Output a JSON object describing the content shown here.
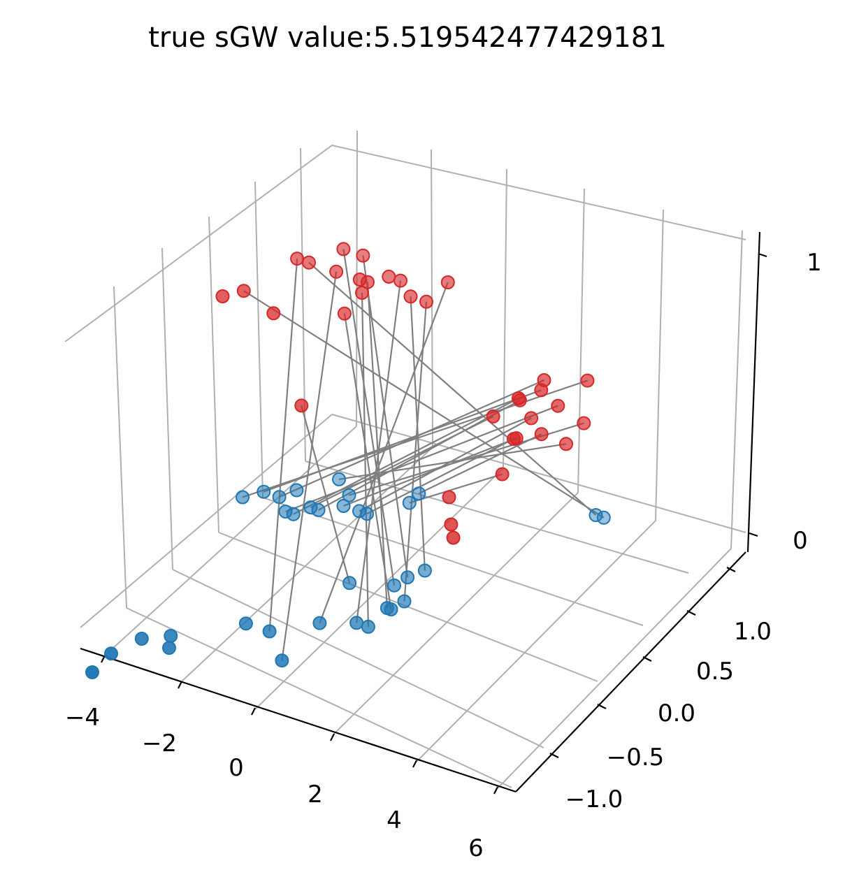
{
  "chart_data": {
    "type": "scatter",
    "title": "true sGW value:5.519542477429181",
    "axes": {
      "x": {
        "ticks": [
          "−4",
          "−2",
          "0",
          "2",
          "4",
          "6"
        ]
      },
      "y": {
        "ticks": [
          "−1.0",
          "−0.5",
          "0.0",
          "0.5",
          "1.0"
        ]
      },
      "z": {
        "ticks": [
          "0",
          "1"
        ]
      }
    },
    "grid": true,
    "colors": {
      "source": "#1f77b4",
      "target": "#d62728",
      "match_line": "#7f7f7f",
      "grid": "#b0b0b0"
    },
    "series": [
      {
        "color": "#1f77b4",
        "points": [
          [
            -3.8,
            -1.2,
            0
          ],
          [
            -3.8,
            -1.4,
            0
          ],
          [
            -3.5,
            -1.0,
            0
          ],
          [
            -3.0,
            -0.9,
            0
          ],
          [
            -2.8,
            -1.0,
            0
          ],
          [
            -1.8,
            -0.6,
            0
          ],
          [
            -1.2,
            -0.6,
            0
          ],
          [
            -0.4,
            -0.8,
            0
          ],
          [
            -0.4,
            -0.4,
            0
          ],
          [
            0.3,
            -0.3,
            0
          ],
          [
            0.6,
            -0.3,
            0
          ],
          [
            0.6,
            -0.1,
            0
          ],
          [
            0.6,
            0.3,
            0
          ],
          [
            0.3,
            0.1,
            0
          ],
          [
            0.7,
            -0.1,
            0
          ],
          [
            0.4,
            0.2,
            0
          ],
          [
            0.8,
            0.0,
            0
          ],
          [
            -0.6,
            0.0,
            0
          ],
          [
            2.8,
            1.2,
            0
          ],
          [
            3.0,
            1.2,
            0
          ],
          [
            -4.0,
            0.5,
            0
          ],
          [
            -4.3,
            0.4,
            0
          ],
          [
            -3.6,
            0.5,
            0
          ],
          [
            -3.2,
            0.4,
            0
          ],
          [
            -3.0,
            0.4,
            0
          ],
          [
            -2.8,
            0.5,
            0
          ],
          [
            -2.6,
            0.5,
            0
          ],
          [
            -2.2,
            0.6,
            0
          ],
          [
            -1.8,
            0.6,
            0
          ],
          [
            -1.6,
            0.6,
            0
          ],
          [
            -1.0,
            0.8,
            0
          ],
          [
            -1.0,
            0.9,
            0
          ],
          [
            -2.8,
            0.8,
            0
          ],
          [
            -2.3,
            0.7,
            0
          ],
          [
            -3.4,
            0.6,
            0
          ]
        ]
      },
      {
        "color": "#d62728",
        "points": [
          [
            -3.3,
            -0.3,
            1
          ],
          [
            -3.0,
            -0.2,
            1
          ],
          [
            -2.0,
            -0.3,
            1
          ],
          [
            -1.0,
            -0.4,
            0.75
          ],
          [
            -2.6,
            0.2,
            1
          ],
          [
            -2.3,
            0.2,
            1
          ],
          [
            -1.9,
            0.4,
            1
          ],
          [
            -1.6,
            0.2,
            1
          ],
          [
            -1.4,
            0.4,
            1
          ],
          [
            -1.0,
            0.2,
            1
          ],
          [
            -0.9,
            0.0,
            0.95
          ],
          [
            -0.7,
            0.1,
            1
          ],
          [
            -0.8,
            0.2,
            1
          ],
          [
            -0.5,
            0.3,
            1
          ],
          [
            -0.2,
            0.3,
            1
          ],
          [
            0.3,
            0.2,
            1
          ],
          [
            0.7,
            0.2,
            1
          ],
          [
            1.0,
            0.3,
            1.05
          ],
          [
            4.6,
            -0.2,
            1
          ],
          [
            5.3,
            0.0,
            1
          ],
          [
            4.2,
            0.0,
            0.95
          ],
          [
            4.8,
            -0.1,
            0.92
          ],
          [
            3.8,
            -0.1,
            0.9
          ],
          [
            3.4,
            -0.2,
            0.85
          ],
          [
            3.6,
            0.0,
            0.85
          ],
          [
            4.0,
            -0.2,
            0.8
          ],
          [
            3.9,
            0.0,
            0.8
          ],
          [
            3.7,
            -0.1,
            0.75
          ],
          [
            3.9,
            -0.3,
            0.7
          ],
          [
            4.4,
            -0.1,
            0.8
          ],
          [
            4.8,
            0.0,
            0.75
          ],
          [
            5.0,
            0.1,
            0.8
          ],
          [
            2.8,
            -0.4,
            0.6
          ],
          [
            3.1,
            -0.5,
            0.55
          ],
          [
            3.4,
            -0.6,
            0.55
          ]
        ]
      }
    ],
    "matches": [
      [
        17,
        3
      ],
      [
        11,
        12
      ],
      [
        12,
        15
      ],
      [
        14,
        10
      ],
      [
        13,
        6
      ],
      [
        15,
        8
      ],
      [
        16,
        16
      ],
      [
        10,
        11
      ],
      [
        9,
        14
      ],
      [
        8,
        17
      ],
      [
        7,
        7
      ],
      [
        6,
        4
      ],
      [
        18,
        5
      ],
      [
        19,
        1
      ],
      [
        20,
        18
      ],
      [
        21,
        19
      ],
      [
        22,
        20
      ],
      [
        23,
        21
      ],
      [
        24,
        22
      ],
      [
        25,
        23
      ],
      [
        26,
        24
      ],
      [
        27,
        25
      ],
      [
        28,
        26
      ],
      [
        29,
        27
      ],
      [
        30,
        28
      ],
      [
        31,
        29
      ],
      [
        32,
        30
      ],
      [
        33,
        31
      ]
    ]
  }
}
